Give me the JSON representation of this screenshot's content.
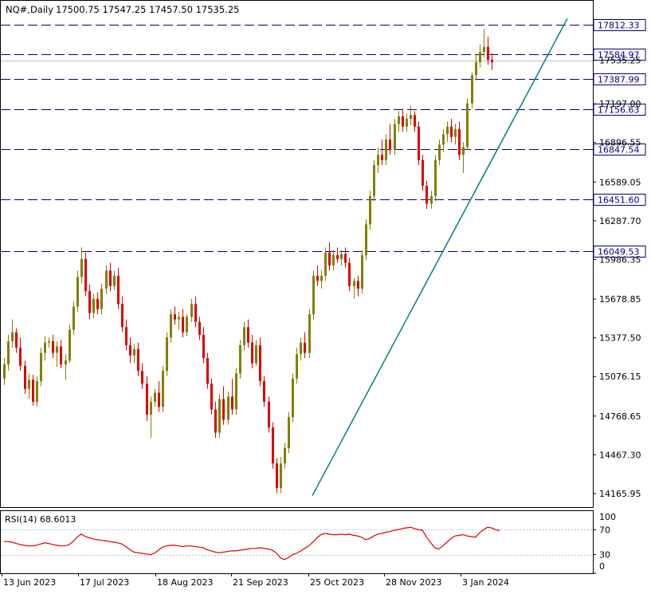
{
  "header": {
    "symbol": "NQ#,Daily",
    "ohlc": "17500.75 17547.25 17457.50 17535.25"
  },
  "chart_data": [
    {
      "type": "candlestick",
      "title": "NQ#,Daily",
      "price_axis": {
        "ticks": [
          17812.33,
          17584.97,
          17535.25,
          17387.99,
          17197.0,
          17156.63,
          16896.55,
          16847.54,
          16589.05,
          16451.6,
          16287.7,
          16049.53,
          15986.35,
          15678.85,
          15377.5,
          15076.15,
          14768.65,
          14467.3,
          14165.95
        ],
        "tick_labels": [
          "17812.33",
          "17584.97",
          "17535.25",
          "17387.99",
          "17197.00",
          "17156.63",
          "16896.55",
          "16847.54",
          "16589.05",
          "16451.60",
          "16287.70",
          "16049.53",
          "15986.35",
          "15678.85",
          "15377.50",
          "15076.15",
          "14768.65",
          "14467.30",
          "14165.95"
        ]
      },
      "date_axis": {
        "labels": [
          "13 Jun 2023",
          "17 Jul 2023",
          "18 Aug 2023",
          "21 Sep 2023",
          "25 Oct 2023",
          "28 Nov 2023",
          "3 Jan 2024"
        ]
      },
      "horizontal_levels": [
        17812.33,
        17584.97,
        17387.99,
        17156.63,
        16847.54,
        16451.6,
        16049.53
      ],
      "horizontal_level_labels": [
        "17812.33",
        "17584.97",
        "17387.99",
        "17156.63",
        "16847.54",
        "16451.60",
        "16049.53"
      ],
      "current_price": 17535.25,
      "current_price_label": "17535.25",
      "trendline": {
        "from": {
          "date": "2023-10-27",
          "price": 14150
        },
        "to": {
          "date": "2024-02-13",
          "price": 17860
        }
      },
      "candles": [
        {
          "o": 15060,
          "h": 15220,
          "l": 15010,
          "c": 15170
        },
        {
          "o": 15170,
          "h": 15400,
          "l": 15120,
          "c": 15350
        },
        {
          "o": 15350,
          "h": 15520,
          "l": 15300,
          "c": 15420
        },
        {
          "o": 15420,
          "h": 15450,
          "l": 15260,
          "c": 15300
        },
        {
          "o": 15300,
          "h": 15380,
          "l": 15120,
          "c": 15160
        },
        {
          "o": 15160,
          "h": 15200,
          "l": 14940,
          "c": 14980
        },
        {
          "o": 14980,
          "h": 15100,
          "l": 14900,
          "c": 15050
        },
        {
          "o": 15050,
          "h": 15090,
          "l": 14850,
          "c": 14880
        },
        {
          "o": 14880,
          "h": 15080,
          "l": 14840,
          "c": 15040
        },
        {
          "o": 15040,
          "h": 15300,
          "l": 15000,
          "c": 15260
        },
        {
          "o": 15260,
          "h": 15390,
          "l": 15200,
          "c": 15340
        },
        {
          "o": 15340,
          "h": 15380,
          "l": 15300,
          "c": 15350
        },
        {
          "o": 15350,
          "h": 15400,
          "l": 15220,
          "c": 15260
        },
        {
          "o": 15260,
          "h": 15350,
          "l": 15150,
          "c": 15310
        },
        {
          "o": 15310,
          "h": 15360,
          "l": 15140,
          "c": 15170
        },
        {
          "o": 15170,
          "h": 15250,
          "l": 15050,
          "c": 15200
        },
        {
          "o": 15200,
          "h": 15480,
          "l": 15180,
          "c": 15440
        },
        {
          "o": 15440,
          "h": 15660,
          "l": 15400,
          "c": 15620
        },
        {
          "o": 15620,
          "h": 15900,
          "l": 15580,
          "c": 15850
        },
        {
          "o": 15850,
          "h": 16080,
          "l": 15800,
          "c": 15990
        },
        {
          "o": 15990,
          "h": 16040,
          "l": 15700,
          "c": 15740
        },
        {
          "o": 15740,
          "h": 15790,
          "l": 15520,
          "c": 15570
        },
        {
          "o": 15570,
          "h": 15720,
          "l": 15530,
          "c": 15680
        },
        {
          "o": 15680,
          "h": 15730,
          "l": 15560,
          "c": 15600
        },
        {
          "o": 15600,
          "h": 15800,
          "l": 15560,
          "c": 15760
        },
        {
          "o": 15760,
          "h": 15940,
          "l": 15720,
          "c": 15900
        },
        {
          "o": 15900,
          "h": 15960,
          "l": 15740,
          "c": 15780
        },
        {
          "o": 15780,
          "h": 15900,
          "l": 15750,
          "c": 15860
        },
        {
          "o": 15860,
          "h": 15920,
          "l": 15600,
          "c": 15640
        },
        {
          "o": 15640,
          "h": 15700,
          "l": 15420,
          "c": 15460
        },
        {
          "o": 15460,
          "h": 15520,
          "l": 15280,
          "c": 15320
        },
        {
          "o": 15320,
          "h": 15380,
          "l": 15180,
          "c": 15240
        },
        {
          "o": 15240,
          "h": 15330,
          "l": 15180,
          "c": 15290
        },
        {
          "o": 15290,
          "h": 15340,
          "l": 15080,
          "c": 15120
        },
        {
          "o": 15120,
          "h": 15180,
          "l": 14980,
          "c": 15020
        },
        {
          "o": 15020,
          "h": 15080,
          "l": 14730,
          "c": 14780
        },
        {
          "o": 14780,
          "h": 14920,
          "l": 14600,
          "c": 14880
        },
        {
          "o": 14880,
          "h": 14980,
          "l": 14840,
          "c": 14950
        },
        {
          "o": 14950,
          "h": 15040,
          "l": 14800,
          "c": 14840
        },
        {
          "o": 14840,
          "h": 15160,
          "l": 14800,
          "c": 15120
        },
        {
          "o": 15120,
          "h": 15420,
          "l": 15080,
          "c": 15380
        },
        {
          "o": 15380,
          "h": 15600,
          "l": 15340,
          "c": 15560
        },
        {
          "o": 15560,
          "h": 15620,
          "l": 15480,
          "c": 15520
        },
        {
          "o": 15520,
          "h": 15580,
          "l": 15440,
          "c": 15540
        },
        {
          "o": 15540,
          "h": 15600,
          "l": 15380,
          "c": 15420
        },
        {
          "o": 15420,
          "h": 15560,
          "l": 15390,
          "c": 15540
        },
        {
          "o": 15540,
          "h": 15680,
          "l": 15500,
          "c": 15640
        },
        {
          "o": 15640,
          "h": 15700,
          "l": 15460,
          "c": 15500
        },
        {
          "o": 15500,
          "h": 15540,
          "l": 15360,
          "c": 15400
        },
        {
          "o": 15400,
          "h": 15460,
          "l": 15180,
          "c": 15220
        },
        {
          "o": 15220,
          "h": 15260,
          "l": 14980,
          "c": 15020
        },
        {
          "o": 15020,
          "h": 15060,
          "l": 14780,
          "c": 14820
        },
        {
          "o": 14820,
          "h": 14880,
          "l": 14600,
          "c": 14640
        },
        {
          "o": 14640,
          "h": 14940,
          "l": 14600,
          "c": 14900
        },
        {
          "o": 14900,
          "h": 15000,
          "l": 14700,
          "c": 14740
        },
        {
          "o": 14740,
          "h": 14960,
          "l": 14700,
          "c": 14920
        },
        {
          "o": 14920,
          "h": 15060,
          "l": 14780,
          "c": 14820
        },
        {
          "o": 14820,
          "h": 15140,
          "l": 14780,
          "c": 15100
        },
        {
          "o": 15100,
          "h": 15360,
          "l": 15060,
          "c": 15320
        },
        {
          "o": 15320,
          "h": 15500,
          "l": 15280,
          "c": 15460
        },
        {
          "o": 15460,
          "h": 15520,
          "l": 15300,
          "c": 15340
        },
        {
          "o": 15340,
          "h": 15400,
          "l": 15140,
          "c": 15180
        },
        {
          "o": 15180,
          "h": 15360,
          "l": 15160,
          "c": 15320
        },
        {
          "o": 15320,
          "h": 15380,
          "l": 15000,
          "c": 15040
        },
        {
          "o": 15040,
          "h": 15080,
          "l": 14840,
          "c": 14880
        },
        {
          "o": 14880,
          "h": 14920,
          "l": 14640,
          "c": 14680
        },
        {
          "o": 14680,
          "h": 14720,
          "l": 14360,
          "c": 14400
        },
        {
          "o": 14400,
          "h": 14440,
          "l": 14170,
          "c": 14210
        },
        {
          "o": 14210,
          "h": 14450,
          "l": 14170,
          "c": 14400
        },
        {
          "o": 14400,
          "h": 14560,
          "l": 14360,
          "c": 14520
        },
        {
          "o": 14520,
          "h": 14800,
          "l": 14480,
          "c": 14760
        },
        {
          "o": 14760,
          "h": 15100,
          "l": 14720,
          "c": 15060
        },
        {
          "o": 15060,
          "h": 15300,
          "l": 15020,
          "c": 15250
        },
        {
          "o": 15250,
          "h": 15380,
          "l": 15200,
          "c": 15340
        },
        {
          "o": 15340,
          "h": 15420,
          "l": 15220,
          "c": 15260
        },
        {
          "o": 15260,
          "h": 15600,
          "l": 15220,
          "c": 15560
        },
        {
          "o": 15560,
          "h": 15900,
          "l": 15520,
          "c": 15860
        },
        {
          "o": 15860,
          "h": 15940,
          "l": 15780,
          "c": 15820
        },
        {
          "o": 15820,
          "h": 15900,
          "l": 15760,
          "c": 15860
        },
        {
          "o": 15860,
          "h": 16080,
          "l": 15820,
          "c": 16040
        },
        {
          "o": 16040,
          "h": 16120,
          "l": 15900,
          "c": 15940
        },
        {
          "o": 15940,
          "h": 16060,
          "l": 15900,
          "c": 16020
        },
        {
          "o": 16020,
          "h": 16080,
          "l": 15960,
          "c": 15990
        },
        {
          "o": 15990,
          "h": 16060,
          "l": 15940,
          "c": 16030
        },
        {
          "o": 16030,
          "h": 16080,
          "l": 15920,
          "c": 15960
        },
        {
          "o": 15960,
          "h": 16000,
          "l": 15740,
          "c": 15780
        },
        {
          "o": 15780,
          "h": 15840,
          "l": 15680,
          "c": 15820
        },
        {
          "o": 15820,
          "h": 15860,
          "l": 15700,
          "c": 15760
        },
        {
          "o": 15760,
          "h": 16060,
          "l": 15720,
          "c": 16020
        },
        {
          "o": 16020,
          "h": 16300,
          "l": 15980,
          "c": 16260
        },
        {
          "o": 16260,
          "h": 16520,
          "l": 16220,
          "c": 16480
        },
        {
          "o": 16480,
          "h": 16760,
          "l": 16440,
          "c": 16720
        },
        {
          "o": 16720,
          "h": 16860,
          "l": 16660,
          "c": 16800
        },
        {
          "o": 16800,
          "h": 16920,
          "l": 16720,
          "c": 16760
        },
        {
          "o": 16760,
          "h": 16960,
          "l": 16720,
          "c": 16920
        },
        {
          "o": 16920,
          "h": 17040,
          "l": 16800,
          "c": 16840
        },
        {
          "o": 16840,
          "h": 17080,
          "l": 16800,
          "c": 17040
        },
        {
          "o": 17040,
          "h": 17140,
          "l": 16980,
          "c": 17100
        },
        {
          "o": 17100,
          "h": 17160,
          "l": 16980,
          "c": 17020
        },
        {
          "o": 17020,
          "h": 17120,
          "l": 16980,
          "c": 17080
        },
        {
          "o": 17080,
          "h": 17180,
          "l": 17030,
          "c": 17110
        },
        {
          "o": 17110,
          "h": 17140,
          "l": 16980,
          "c": 17020
        },
        {
          "o": 17020,
          "h": 17060,
          "l": 16720,
          "c": 16760
        },
        {
          "o": 16760,
          "h": 16800,
          "l": 16520,
          "c": 16560
        },
        {
          "o": 16560,
          "h": 16600,
          "l": 16380,
          "c": 16420
        },
        {
          "o": 16420,
          "h": 16520,
          "l": 16380,
          "c": 16480
        },
        {
          "o": 16480,
          "h": 16800,
          "l": 16440,
          "c": 16760
        },
        {
          "o": 16760,
          "h": 16920,
          "l": 16720,
          "c": 16880
        },
        {
          "o": 16880,
          "h": 17000,
          "l": 16820,
          "c": 16960
        },
        {
          "o": 16960,
          "h": 17060,
          "l": 16900,
          "c": 17020
        },
        {
          "o": 17020,
          "h": 17080,
          "l": 16900,
          "c": 16940
        },
        {
          "o": 16940,
          "h": 17040,
          "l": 16880,
          "c": 17000
        },
        {
          "o": 17000,
          "h": 17060,
          "l": 16760,
          "c": 16800
        },
        {
          "o": 16800,
          "h": 16900,
          "l": 16660,
          "c": 16860
        },
        {
          "o": 16860,
          "h": 17240,
          "l": 16840,
          "c": 17200
        },
        {
          "o": 17200,
          "h": 17440,
          "l": 17160,
          "c": 17420
        },
        {
          "o": 17420,
          "h": 17580,
          "l": 17380,
          "c": 17520
        },
        {
          "o": 17520,
          "h": 17660,
          "l": 17480,
          "c": 17600
        },
        {
          "o": 17600,
          "h": 17780,
          "l": 17560,
          "c": 17640
        },
        {
          "o": 17640,
          "h": 17720,
          "l": 17500,
          "c": 17540
        },
        {
          "o": 17540,
          "h": 17590,
          "l": 17460,
          "c": 17520
        }
      ]
    },
    {
      "type": "line",
      "title": "RSI(14) 68.6013",
      "yticks": [
        70,
        30,
        0
      ],
      "ytick_labels": [
        "70",
        "30",
        "0"
      ],
      "y_top_label": "100",
      "ylim": [
        0,
        100
      ],
      "values": [
        51,
        51,
        50,
        48,
        46,
        45,
        44,
        44,
        45,
        47,
        49,
        48,
        46,
        45,
        44,
        44,
        46,
        51,
        58,
        63,
        59,
        57,
        55,
        54,
        53,
        52,
        51,
        50,
        49,
        47,
        43,
        38,
        34,
        33,
        32,
        31,
        30,
        32,
        37,
        42,
        44,
        45,
        45,
        44,
        43,
        44,
        44,
        43,
        42,
        41,
        38,
        36,
        34,
        33,
        34,
        35,
        36,
        36,
        37,
        38,
        39,
        40,
        40,
        41,
        40,
        39,
        37,
        33,
        25,
        22,
        25,
        30,
        32,
        36,
        40,
        44,
        50,
        57,
        62,
        64,
        63,
        62,
        62,
        63,
        62,
        63,
        61,
        60,
        58,
        54,
        56,
        60,
        63,
        64,
        66,
        67,
        69,
        70,
        72,
        73,
        74,
        72,
        70,
        69,
        58,
        49,
        41,
        39,
        44,
        50,
        56,
        60,
        61,
        62,
        60,
        59,
        58,
        65,
        70,
        74,
        73,
        70,
        68.6
      ]
    }
  ]
}
